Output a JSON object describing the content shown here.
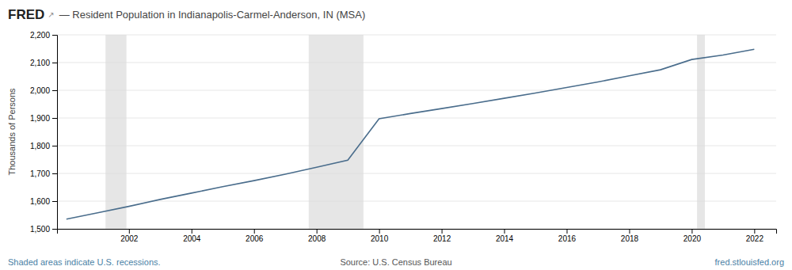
{
  "chart_data": {
    "type": "line",
    "title": "— Resident Population in Indianapolis-Carmel-Anderson, IN (MSA)",
    "ylabel": "Thousands of Persons",
    "annotations": [
      "FRED",
      "↗",
      "Shaded areas indicate U.S. recessions.",
      "Source: U.S. Census Bureau",
      "fred.stlouisfed.org"
    ],
    "x": [
      2000,
      2001,
      2002,
      2003,
      2004,
      2005,
      2006,
      2007,
      2008,
      2009,
      2010,
      2011,
      2012,
      2013,
      2014,
      2015,
      2016,
      2017,
      2018,
      2019,
      2020,
      2021,
      2022
    ],
    "values": [
      1535,
      1558,
      1581,
      1606,
      1629,
      1652,
      1674,
      1697,
      1722,
      1748,
      1897,
      1916,
      1934,
      1952,
      1971,
      1990,
      2010,
      2030,
      2052,
      2074,
      2111,
      2127,
      2148
    ],
    "color": "#4a6d8c",
    "recessions": [
      [
        2001.25,
        2001.92
      ],
      [
        2007.75,
        2009.5
      ],
      [
        2020.17,
        2020.42
      ]
    ],
    "xlim": [
      1999.7,
      2022.7
    ],
    "xticks": [
      2002,
      2004,
      2006,
      2008,
      2010,
      2012,
      2014,
      2016,
      2018,
      2020,
      2022
    ],
    "ylim": [
      1500,
      2200
    ],
    "yticks": [
      {
        "value": 1500,
        "label": "1,500"
      },
      {
        "value": 1600,
        "label": "1,600"
      },
      {
        "value": 1700,
        "label": "1,700"
      },
      {
        "value": 1800,
        "label": "1,800"
      },
      {
        "value": 1900,
        "label": "1,900"
      },
      {
        "value": 2000,
        "label": "2,000"
      },
      {
        "value": 2100,
        "label": "2,100"
      },
      {
        "value": 2200,
        "label": "2,200"
      }
    ],
    "grid": true
  }
}
